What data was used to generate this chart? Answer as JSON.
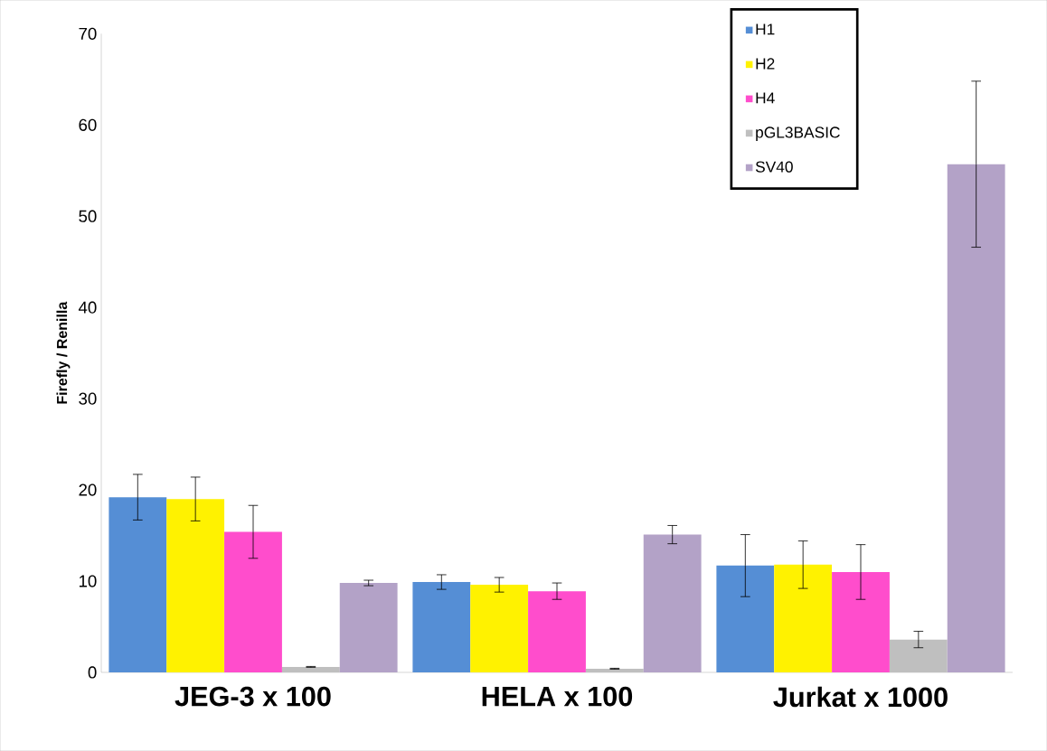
{
  "chart_data": {
    "type": "bar",
    "ylabel": "Firefly / Renilla",
    "categories": [
      "JEG-3 x 100",
      "HELA x 100",
      "Jurkat x 1000"
    ],
    "series": [
      {
        "name": "H1",
        "color": "#558ed5",
        "values": [
          19.2,
          9.9,
          11.7
        ],
        "errors": [
          2.5,
          0.8,
          3.4
        ]
      },
      {
        "name": "H2",
        "color": "#fff200",
        "values": [
          19.0,
          9.6,
          11.8
        ],
        "errors": [
          2.4,
          0.8,
          2.6
        ]
      },
      {
        "name": "H4",
        "color": "#ff4dcc",
        "values": [
          15.4,
          8.9,
          11.0
        ],
        "errors": [
          2.9,
          0.9,
          3.0
        ]
      },
      {
        "name": "pGL3BASIC",
        "color": "#bfbfbf",
        "values": [
          0.6,
          0.4,
          3.6
        ],
        "errors": [
          0.05,
          0.05,
          0.9
        ]
      },
      {
        "name": "SV40",
        "color": "#b3a2c7",
        "values": [
          9.8,
          15.1,
          55.7
        ],
        "errors": [
          0.3,
          1.0,
          9.1
        ]
      }
    ],
    "ylim": [
      0,
      70
    ],
    "yticks": [
      0,
      10,
      20,
      30,
      40,
      50,
      60,
      70
    ],
    "legend": "top right"
  }
}
